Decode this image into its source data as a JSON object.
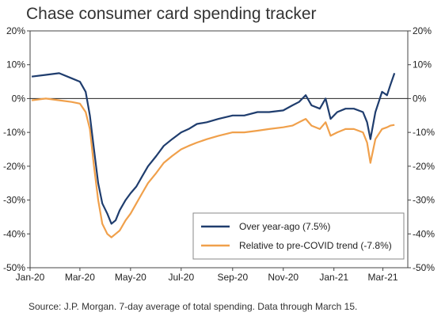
{
  "chart_data": {
    "type": "line",
    "title": "Chase consumer card spending tracker",
    "source": "Source: J.P. Morgan. 7-day average of total spending. Data through March 15.",
    "ylim": [
      -50,
      20
    ],
    "y_ticks": [
      20,
      10,
      0,
      -10,
      -20,
      -30,
      -40,
      -50
    ],
    "y_tick_labels": [
      "20%",
      "10%",
      "0%",
      "-10%",
      "-20%",
      "-30%",
      "-40%",
      "-50%"
    ],
    "x_tick_labels": [
      "Jan-20",
      "Mar-20",
      "May-20",
      "Jul-20",
      "Sep-20",
      "Nov-20",
      "Jan-21",
      "Mar-21"
    ],
    "xlim": [
      "2020-01-01",
      "2021-03-31"
    ],
    "legend_position": "bottom-right",
    "series": [
      {
        "name": "Over year-ago (7.5%)",
        "color": "#1f3d6e",
        "points": [
          [
            "2020-01-03",
            6.5
          ],
          [
            "2020-01-20",
            7
          ],
          [
            "2020-02-05",
            7.5
          ],
          [
            "2020-02-20",
            6
          ],
          [
            "2020-03-01",
            5
          ],
          [
            "2020-03-08",
            2
          ],
          [
            "2020-03-13",
            -5
          ],
          [
            "2020-03-18",
            -15
          ],
          [
            "2020-03-23",
            -25
          ],
          [
            "2020-03-28",
            -31
          ],
          [
            "2020-04-03",
            -34
          ],
          [
            "2020-04-08",
            -37
          ],
          [
            "2020-04-13",
            -36
          ],
          [
            "2020-04-18",
            -33
          ],
          [
            "2020-04-25",
            -30
          ],
          [
            "2020-05-01",
            -28
          ],
          [
            "2020-05-08",
            -26
          ],
          [
            "2020-05-15",
            -23
          ],
          [
            "2020-05-22",
            -20
          ],
          [
            "2020-06-01",
            -17
          ],
          [
            "2020-06-10",
            -14
          ],
          [
            "2020-06-20",
            -12
          ],
          [
            "2020-07-01",
            -10
          ],
          [
            "2020-07-10",
            -9
          ],
          [
            "2020-07-20",
            -7.5
          ],
          [
            "2020-08-01",
            -7
          ],
          [
            "2020-08-15",
            -6
          ],
          [
            "2020-09-01",
            -5
          ],
          [
            "2020-09-15",
            -5
          ],
          [
            "2020-10-01",
            -4
          ],
          [
            "2020-10-15",
            -4
          ],
          [
            "2020-11-01",
            -3.5
          ],
          [
            "2020-11-12",
            -2
          ],
          [
            "2020-11-20",
            -1
          ],
          [
            "2020-11-28",
            1
          ],
          [
            "2020-12-05",
            -2
          ],
          [
            "2020-12-15",
            -3
          ],
          [
            "2020-12-22",
            0
          ],
          [
            "2020-12-28",
            -6
          ],
          [
            "2021-01-05",
            -4
          ],
          [
            "2021-01-15",
            -3
          ],
          [
            "2021-01-25",
            -3
          ],
          [
            "2021-02-05",
            -4
          ],
          [
            "2021-02-10",
            -7
          ],
          [
            "2021-02-14",
            -12
          ],
          [
            "2021-02-20",
            -4
          ],
          [
            "2021-02-28",
            2
          ],
          [
            "2021-03-06",
            1
          ],
          [
            "2021-03-10",
            4
          ],
          [
            "2021-03-15",
            7.5
          ]
        ]
      },
      {
        "name": "Relative to pre-COVID trend (-7.8%)",
        "color": "#f0a04b",
        "points": [
          [
            "2020-01-03",
            -0.5
          ],
          [
            "2020-01-20",
            0
          ],
          [
            "2020-02-05",
            -0.5
          ],
          [
            "2020-02-20",
            -1
          ],
          [
            "2020-03-01",
            -1.5
          ],
          [
            "2020-03-08",
            -4
          ],
          [
            "2020-03-13",
            -9
          ],
          [
            "2020-03-18",
            -20
          ],
          [
            "2020-03-23",
            -30
          ],
          [
            "2020-03-28",
            -37
          ],
          [
            "2020-04-03",
            -40
          ],
          [
            "2020-04-08",
            -41
          ],
          [
            "2020-04-13",
            -40
          ],
          [
            "2020-04-18",
            -39
          ],
          [
            "2020-04-25",
            -36
          ],
          [
            "2020-05-01",
            -34
          ],
          [
            "2020-05-08",
            -31
          ],
          [
            "2020-05-15",
            -28
          ],
          [
            "2020-05-22",
            -25
          ],
          [
            "2020-06-01",
            -22
          ],
          [
            "2020-06-10",
            -19
          ],
          [
            "2020-06-20",
            -17
          ],
          [
            "2020-07-01",
            -15
          ],
          [
            "2020-07-10",
            -14
          ],
          [
            "2020-07-20",
            -13
          ],
          [
            "2020-08-01",
            -12
          ],
          [
            "2020-08-15",
            -11
          ],
          [
            "2020-09-01",
            -10
          ],
          [
            "2020-09-15",
            -10
          ],
          [
            "2020-10-01",
            -9.5
          ],
          [
            "2020-10-15",
            -9
          ],
          [
            "2020-11-01",
            -8.5
          ],
          [
            "2020-11-12",
            -8
          ],
          [
            "2020-11-20",
            -7
          ],
          [
            "2020-11-28",
            -6
          ],
          [
            "2020-12-05",
            -8
          ],
          [
            "2020-12-15",
            -9
          ],
          [
            "2020-12-22",
            -7
          ],
          [
            "2020-12-28",
            -11
          ],
          [
            "2021-01-05",
            -10
          ],
          [
            "2021-01-15",
            -9
          ],
          [
            "2021-01-25",
            -9
          ],
          [
            "2021-02-05",
            -10
          ],
          [
            "2021-02-10",
            -13
          ],
          [
            "2021-02-14",
            -19
          ],
          [
            "2021-02-20",
            -12
          ],
          [
            "2021-02-28",
            -9
          ],
          [
            "2021-03-06",
            -8.5
          ],
          [
            "2021-03-10",
            -8
          ],
          [
            "2021-03-15",
            -7.8
          ]
        ]
      }
    ]
  }
}
